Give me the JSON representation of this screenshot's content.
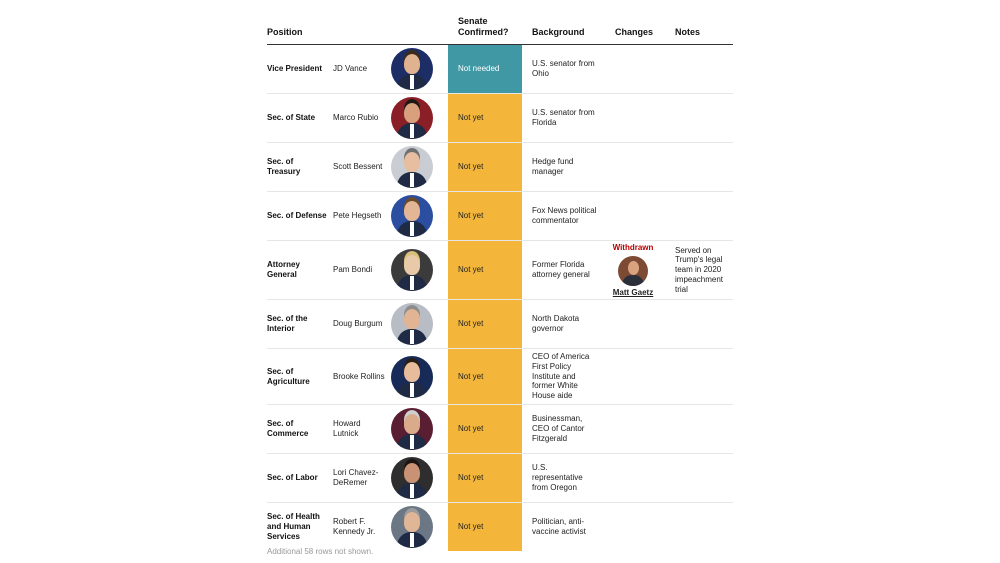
{
  "header": {
    "position": "Position",
    "senate": "Senate Confirmed?",
    "background": "Background",
    "changes": "Changes",
    "notes": "Notes"
  },
  "colors": {
    "status_not_needed": "#3f98a4",
    "status_not_yet": "#f3b63b",
    "withdrawn": "#b40000"
  },
  "rows": [
    {
      "position": "Vice President",
      "name": "JD Vance",
      "status": "Not needed",
      "status_type": "not_needed",
      "background": "U.S. senator from Ohio",
      "changes_label": "",
      "changes_name": "",
      "notes": "",
      "icon": "portrait-icon"
    },
    {
      "position": "Sec. of State",
      "name": "Marco Rubio",
      "status": "Not yet",
      "status_type": "not_yet",
      "background": "U.S. senator from Florida",
      "changes_label": "",
      "changes_name": "",
      "notes": "",
      "icon": "portrait-icon"
    },
    {
      "position": "Sec. of Treasury",
      "name": "Scott Bessent",
      "status": "Not yet",
      "status_type": "not_yet",
      "background": "Hedge fund manager",
      "changes_label": "",
      "changes_name": "",
      "notes": "",
      "icon": "portrait-icon"
    },
    {
      "position": "Sec. of Defense",
      "name": "Pete Hegseth",
      "status": "Not yet",
      "status_type": "not_yet",
      "background": "Fox News political commentator",
      "changes_label": "",
      "changes_name": "",
      "notes": "",
      "icon": "portrait-icon"
    },
    {
      "position": "Attorney General",
      "name": "Pam Bondi",
      "status": "Not yet",
      "status_type": "not_yet",
      "background": "Former Florida attorney general",
      "changes_label": "Withdrawn",
      "changes_name": "Matt Gaetz",
      "notes": "Served on Trump's legal team in 2020 impeachment trial",
      "icon": "portrait-icon"
    },
    {
      "position": "Sec. of the Interior",
      "name": "Doug Burgum",
      "status": "Not yet",
      "status_type": "not_yet",
      "background": "North Dakota governor",
      "changes_label": "",
      "changes_name": "",
      "notes": "",
      "icon": "portrait-icon"
    },
    {
      "position": "Sec. of Agriculture",
      "name": "Brooke Rollins",
      "status": "Not yet",
      "status_type": "not_yet",
      "background": "CEO of America First Policy Institute and former White House aide",
      "changes_label": "",
      "changes_name": "",
      "notes": "",
      "icon": "portrait-icon"
    },
    {
      "position": "Sec. of Commerce",
      "name": "Howard Lutnick",
      "status": "Not yet",
      "status_type": "not_yet",
      "background": "Businessman, CEO of Cantor Fitzgerald",
      "changes_label": "",
      "changes_name": "",
      "notes": "",
      "icon": "portrait-icon"
    },
    {
      "position": "Sec. of Labor",
      "name": "Lori Chavez-DeRemer",
      "status": "Not yet",
      "status_type": "not_yet",
      "background": "U.S. representative from Oregon",
      "changes_label": "",
      "changes_name": "",
      "notes": "",
      "icon": "portrait-icon"
    },
    {
      "position": "Sec. of Health and Human Services",
      "name": "Robert F. Kennedy Jr.",
      "status": "Not yet",
      "status_type": "not_yet",
      "background": "Politician, anti-vaccine activist",
      "changes_label": "",
      "changes_name": "",
      "notes": "",
      "icon": "portrait-icon"
    }
  ],
  "footer": "Additional 58 rows not shown."
}
